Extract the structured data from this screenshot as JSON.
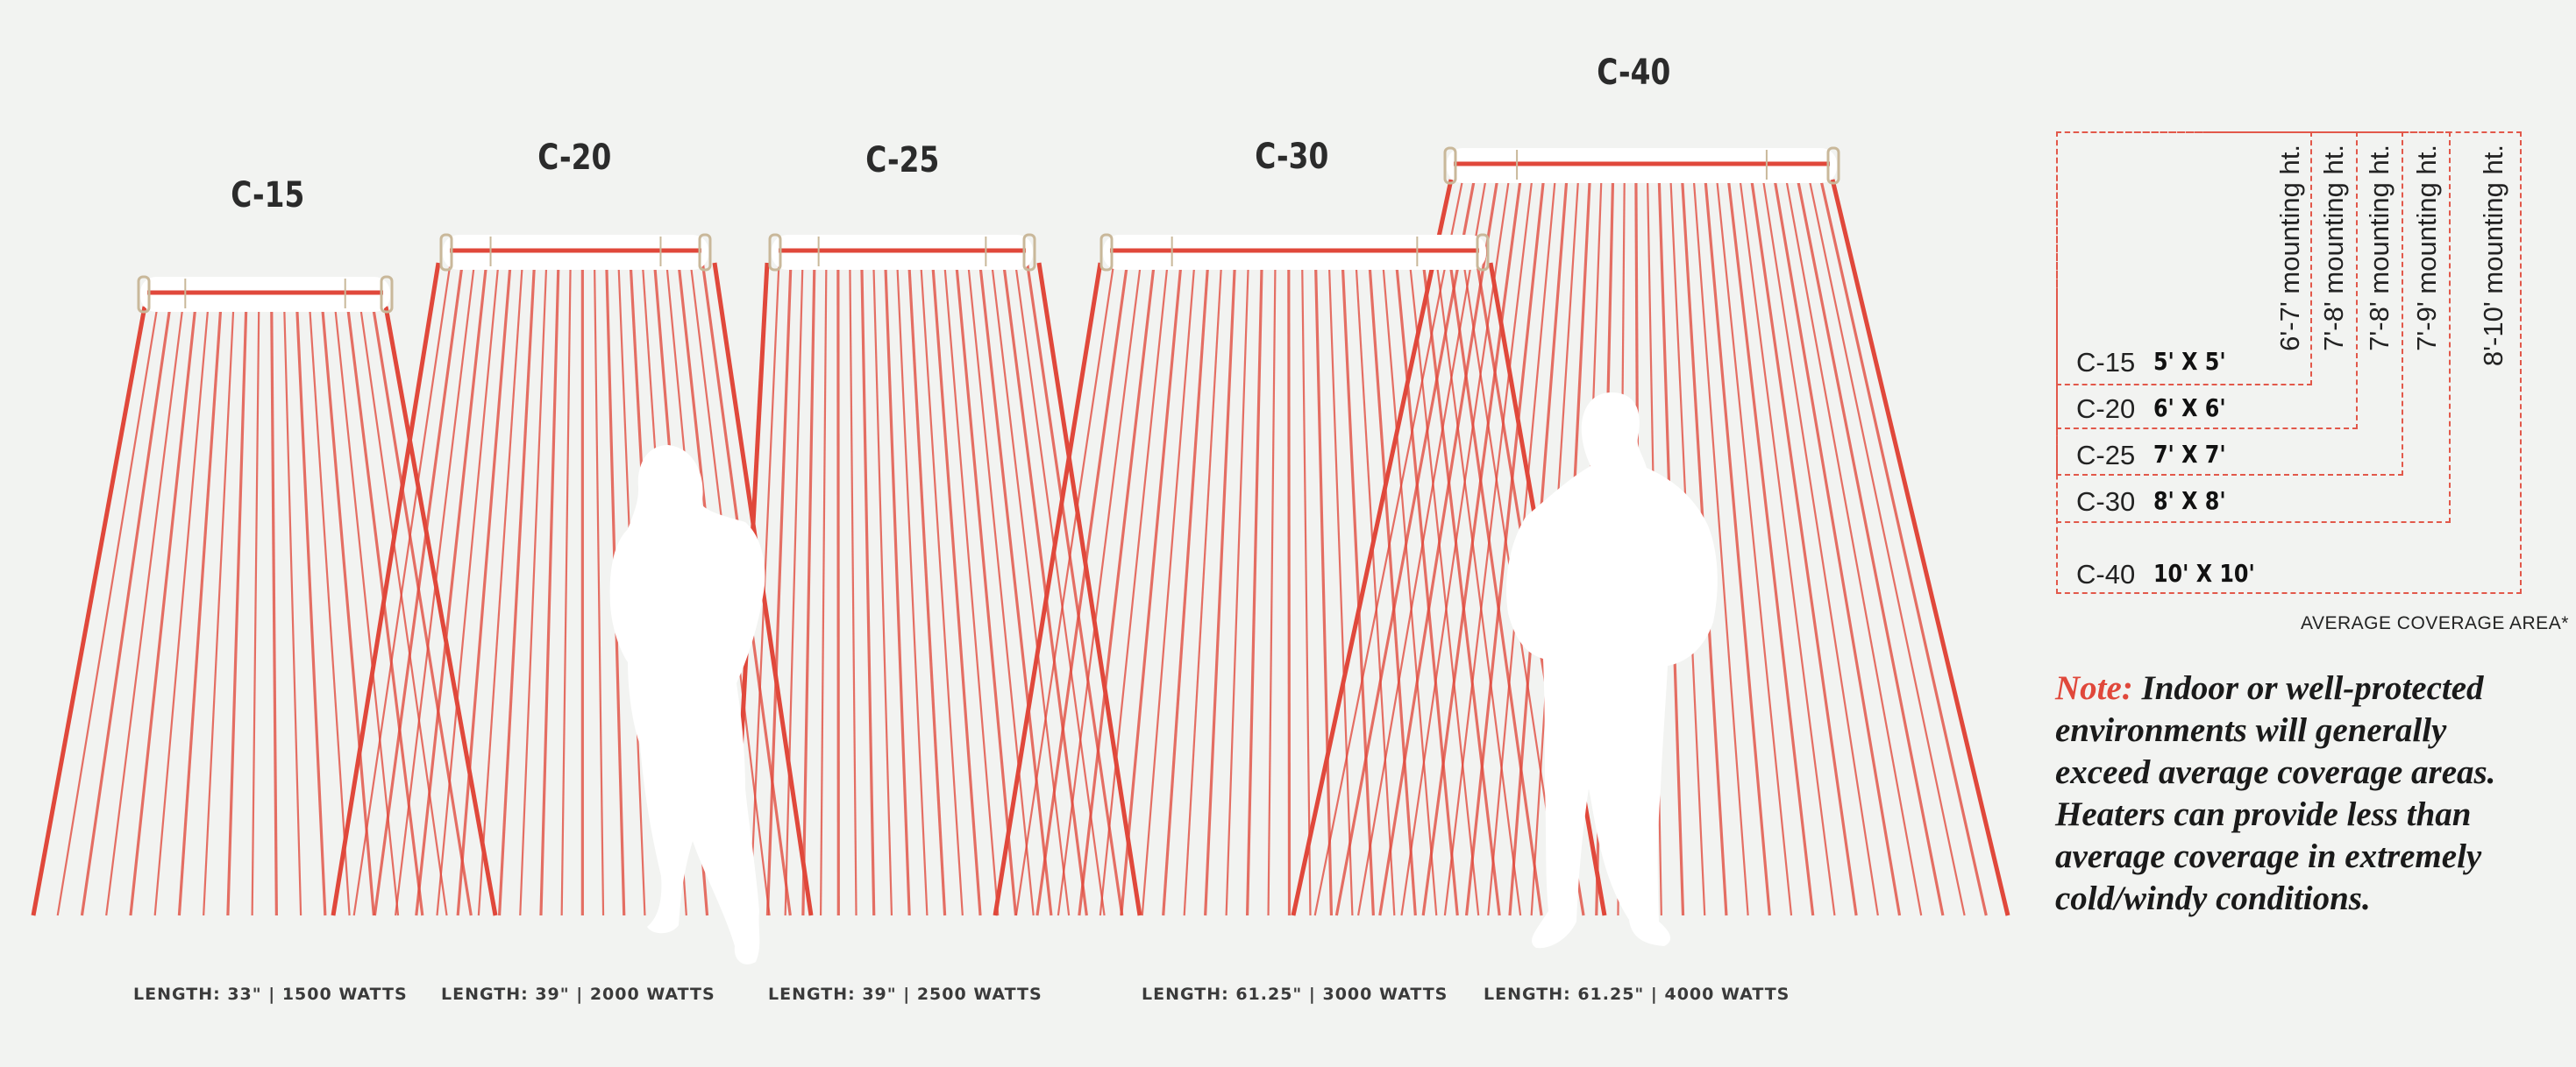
{
  "heaters": [
    {
      "model": "C-15",
      "spec": "LENGTH: 33\" | 1500 WATTS"
    },
    {
      "model": "C-20",
      "spec": "LENGTH: 39\" | 2000 WATTS"
    },
    {
      "model": "C-25",
      "spec": "LENGTH: 39\" | 2500 WATTS"
    },
    {
      "model": "C-30",
      "spec": "LENGTH: 61.25\" | 3000 WATTS"
    },
    {
      "model": "C-40",
      "spec": "LENGTH: 61.25\" | 4000 WATTS"
    }
  ],
  "legend": {
    "rows": [
      {
        "model": "C-15",
        "area": "5' X 5'",
        "mounting": "6'-7' mounting ht."
      },
      {
        "model": "C-20",
        "area": "6' X 6'",
        "mounting": "7'-8' mounting ht."
      },
      {
        "model": "C-25",
        "area": "7' X 7'",
        "mounting": "7'-8' mounting ht."
      },
      {
        "model": "C-30",
        "area": "8' X 8'",
        "mounting": "7'-9' mounting ht."
      },
      {
        "model": "C-40",
        "area": "10' X 10'",
        "mounting": "8'-10' mounting ht."
      }
    ],
    "caption": "AVERAGE COVERAGE AREA*"
  },
  "note": {
    "label": "Note:",
    "text": " Indoor or well-protected environments will generally exceed average coverage areas. Heaters can provide less than average coverage in extremely cold/windy conditions."
  },
  "colors": {
    "ray": "#e0483b",
    "background": "#f2f3f1",
    "accent": "#e2584a"
  }
}
